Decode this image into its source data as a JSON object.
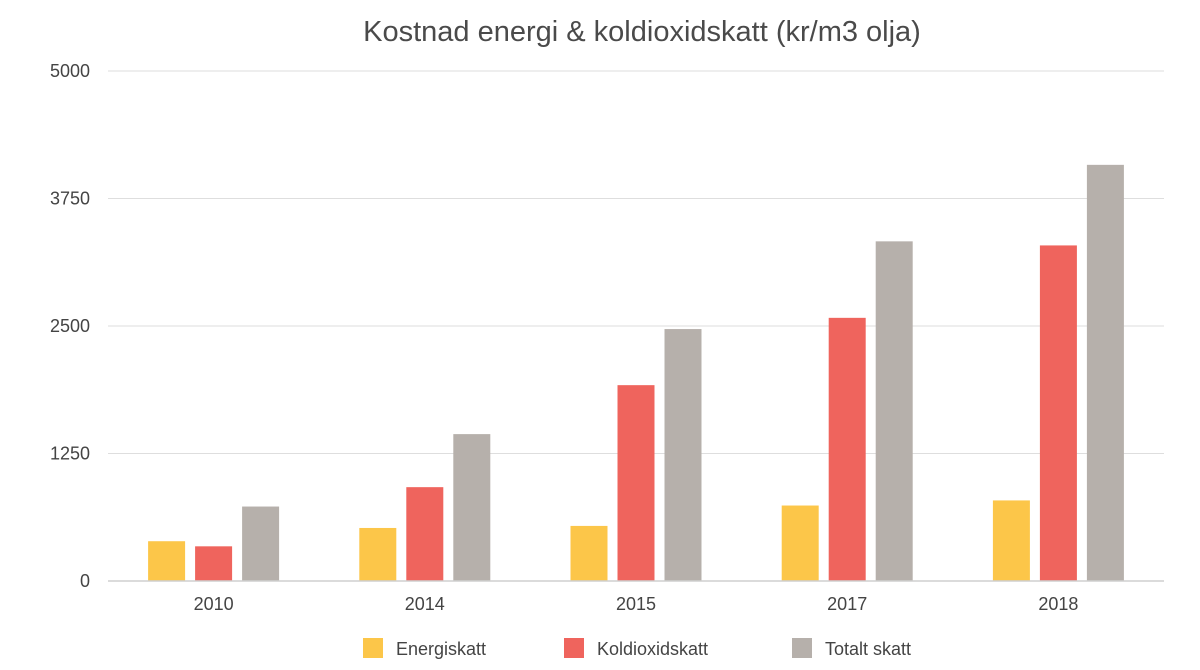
{
  "chart_data": {
    "type": "bar",
    "title": "Kostnad energi & koldioxidskatt (kr/m3 olja)",
    "xlabel": "",
    "ylabel": "",
    "categories": [
      "2010",
      "2014",
      "2015",
      "2017",
      "2018"
    ],
    "series": [
      {
        "name": "Energiskatt",
        "color": "#fcc649",
        "values": [
          390,
          520,
          540,
          740,
          790
        ]
      },
      {
        "name": "Koldioxidskatt",
        "color": "#ef645d",
        "values": [
          340,
          920,
          1920,
          2580,
          3290
        ]
      },
      {
        "name": "Totalt skatt",
        "color": "#b6b0ab",
        "values": [
          730,
          1440,
          2470,
          3330,
          4080
        ]
      }
    ],
    "ylim": [
      0,
      5000
    ],
    "yticks": [
      0,
      1250,
      2500,
      3750,
      5000
    ],
    "grid": true,
    "legend_position": "bottom-center"
  }
}
